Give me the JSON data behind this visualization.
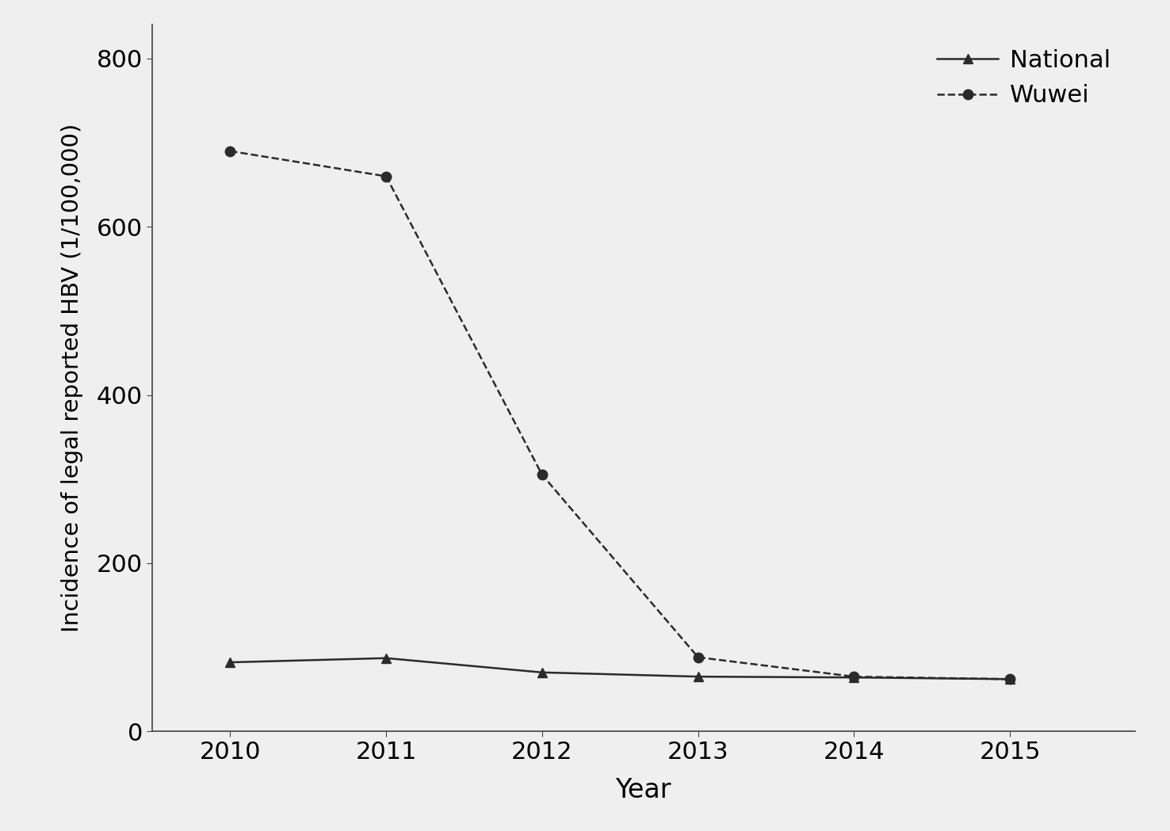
{
  "years": [
    2010,
    2011,
    2012,
    2013,
    2014,
    2015
  ],
  "national": [
    82,
    87,
    70,
    65,
    64,
    62
  ],
  "wuwei": [
    690,
    660,
    305,
    88,
    65,
    62
  ],
  "ylabel": "Incidence of legal reported HBV (1/100,000)",
  "xlabel": "Year",
  "ylim": [
    0,
    840
  ],
  "yticks": [
    0,
    200,
    400,
    600,
    800
  ],
  "xlim": [
    2009.5,
    2015.8
  ],
  "legend_national": "National",
  "legend_wuwei": "Wuwei",
  "line_color": "#2b2b2b",
  "background_color": "#efefef",
  "legend_loc": "upper right"
}
